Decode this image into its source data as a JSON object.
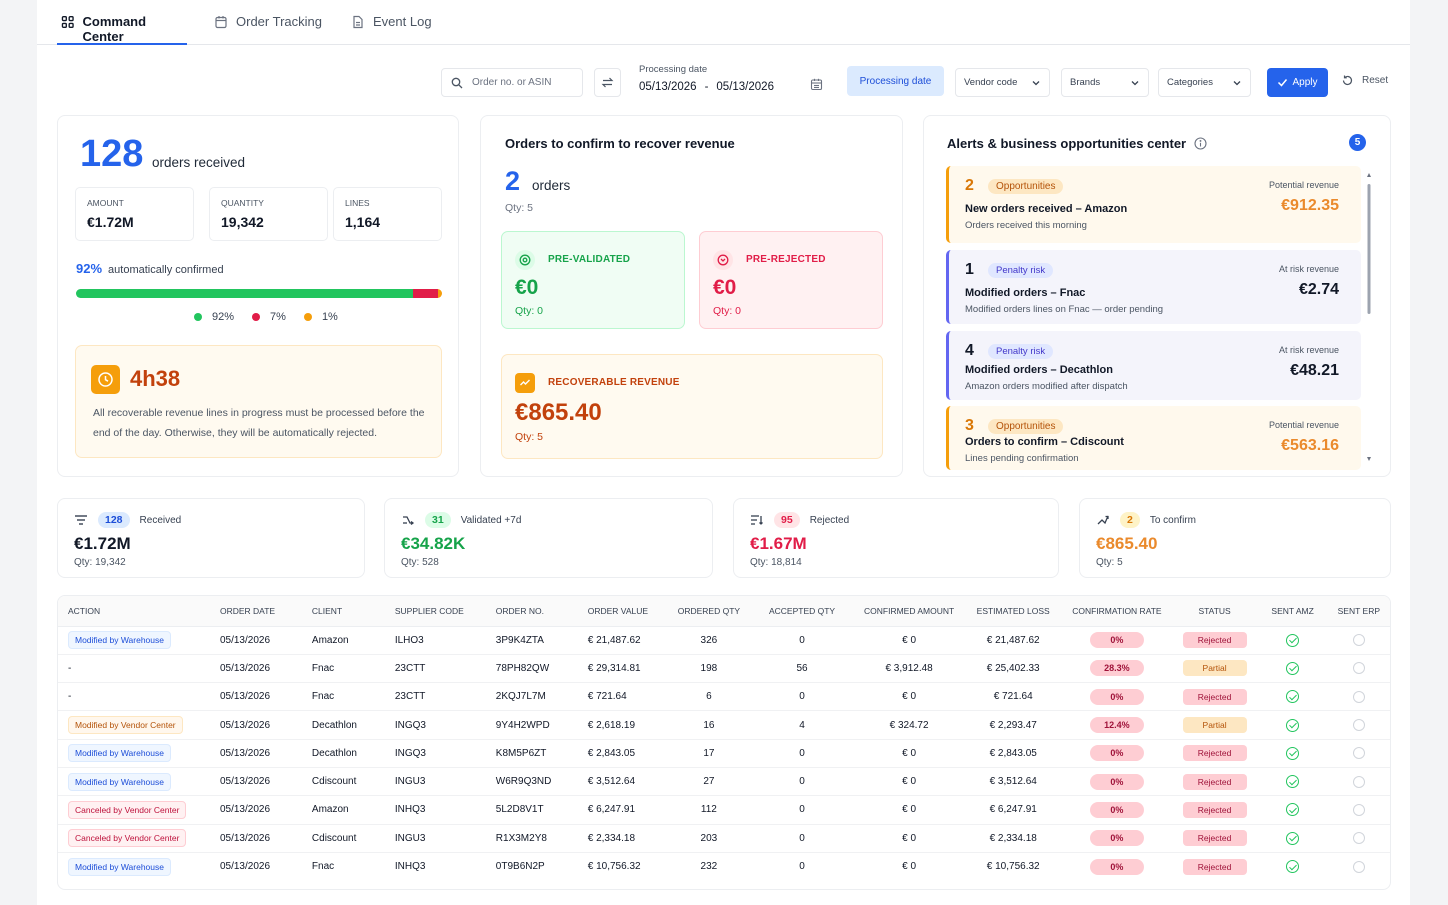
{
  "tabs": [
    {
      "label": "Command Center",
      "icon": "grid-icon"
    },
    {
      "label": "Order Tracking",
      "icon": "calendar-icon"
    },
    {
      "label": "Event Log",
      "icon": "document-icon"
    }
  ],
  "filters": {
    "search_placeholder": "Order no. or ASIN",
    "date_label": "Processing date",
    "date_from": "05/13/2026",
    "date_sep": "-",
    "date_to": "05/13/2026",
    "processing_btn": "Processing date",
    "vendor": "Vendor code",
    "brands": "Brands",
    "categories": "Categories",
    "apply": "Apply",
    "reset": "Reset"
  },
  "summary": {
    "count": "128",
    "count_label": "orders received",
    "stats": [
      {
        "label": "AMOUNT",
        "value": "€1.72M"
      },
      {
        "label": "QUANTITY",
        "value": "19,342"
      },
      {
        "label": "LINES",
        "value": "1,164"
      }
    ],
    "auto_pct": "92%",
    "auto_label": "automatically confirmed",
    "bar": [
      {
        "pct": 92,
        "color": "#22c55e"
      },
      {
        "pct": 7,
        "color": "#e11d48"
      },
      {
        "pct": 1,
        "color": "#f59e0b"
      }
    ],
    "legend": [
      "92%",
      "7%",
      "1%"
    ],
    "timer_value": "4h38",
    "timer_text": "All recoverable revenue lines in progress must be processed before the end of the day. Otherwise, they will be automatically rejected."
  },
  "confirm": {
    "title": "Orders to confirm to recover revenue",
    "count": "2",
    "count_label": "orders",
    "qty": "Qty: 5",
    "prevalidated": {
      "label": "PRE-VALIDATED",
      "value": "€0",
      "qty": "Qty: 0"
    },
    "prerejected": {
      "label": "PRE-REJECTED",
      "value": "€0",
      "qty": "Qty: 0"
    },
    "recoverable": {
      "label": "RECOVERABLE REVENUE",
      "value": "€865.40",
      "qty": "Qty: 5"
    }
  },
  "alerts": {
    "title": "Alerts & business opportunities center",
    "badge": "5",
    "items": [
      {
        "num": "2",
        "tag": "Opportunities",
        "title": "New orders received – Amazon",
        "sub": "Orders received this morning",
        "rlabel": "Potential revenue",
        "value": "€912.35",
        "kind": "opp"
      },
      {
        "num": "1",
        "tag": "Penalty risk",
        "title": "Modified orders – Fnac",
        "sub": "Modified orders lines on Fnac — order pending",
        "rlabel": "At risk revenue",
        "value": "€2.74",
        "kind": "risk"
      },
      {
        "num": "4",
        "tag": "Penalty risk",
        "title": "Modified orders – Decathlon",
        "sub": "Amazon orders modified after dispatch",
        "rlabel": "At risk revenue",
        "value": "€48.21",
        "kind": "risk"
      },
      {
        "num": "3",
        "tag": "Opportunities",
        "title": "Orders to confirm – Cdiscount",
        "sub": "Lines pending confirmation",
        "rlabel": "Potential revenue",
        "value": "€563.16",
        "kind": "opp"
      }
    ]
  },
  "kpis": [
    {
      "count": "128",
      "label": "Received",
      "value": "€1.72M",
      "qty": "Qty: 19,342"
    },
    {
      "count": "31",
      "label": "Validated +7d",
      "value": "€34.82K",
      "qty": "Qty: 528"
    },
    {
      "count": "95",
      "label": "Rejected",
      "value": "€1.67M",
      "qty": "Qty: 18,814"
    },
    {
      "count": "2",
      "label": "To confirm",
      "value": "€865.40",
      "qty": "Qty: 5"
    }
  ],
  "colors": {
    "accent": "#2563eb",
    "green": "#22c55e",
    "red": "#e11d48",
    "orange": "#f59e0b"
  },
  "table": {
    "headers": [
      "ACTION",
      "ORDER DATE",
      "CLIENT",
      "SUPPLIER CODE",
      "ORDER NO.",
      "ORDER VALUE",
      "ORDERED QTY",
      "ACCEPTED QTY",
      "CONFIRMED AMOUNT",
      "ESTIMATED LOSS",
      "CONFIRMATION RATE",
      "STATUS",
      "SENT AMZ",
      "SENT ERP"
    ],
    "rows": [
      {
        "action": "Modified by Warehouse",
        "atype": "blue",
        "date": "05/13/2026",
        "client": "Amazon",
        "supplier": "ILHO3",
        "order": "3P9K4ZTA",
        "value": "€ 21,487.62",
        "ordered": "326",
        "accepted": "0",
        "confirmed": "€ 0",
        "loss": "€ 21,487.62",
        "rate": "0%",
        "status": "Rejected"
      },
      {
        "action": "-",
        "atype": "none",
        "date": "05/13/2026",
        "client": "Fnac",
        "supplier": "23CTT",
        "order": "78PH82QW",
        "value": "€ 29,314.81",
        "ordered": "198",
        "accepted": "56",
        "confirmed": "€ 3,912.48",
        "loss": "€ 25,402.33",
        "rate": "28.3%",
        "status": "Partial"
      },
      {
        "action": "-",
        "atype": "none",
        "date": "05/13/2026",
        "client": "Fnac",
        "supplier": "23CTT",
        "order": "2KQJ7L7M",
        "value": "€ 721.64",
        "ordered": "6",
        "accepted": "0",
        "confirmed": "€ 0",
        "loss": "€ 721.64",
        "rate": "0%",
        "status": "Rejected"
      },
      {
        "action": "Modified by Vendor Center",
        "atype": "orange",
        "date": "05/13/2026",
        "client": "Decathlon",
        "supplier": "INGQ3",
        "order": "9Y4H2WPD",
        "value": "€ 2,618.19",
        "ordered": "16",
        "accepted": "4",
        "confirmed": "€ 324.72",
        "loss": "€ 2,293.47",
        "rate": "12.4%",
        "status": "Partial"
      },
      {
        "action": "Modified by Warehouse",
        "atype": "blue",
        "date": "05/13/2026",
        "client": "Decathlon",
        "supplier": "INGQ3",
        "order": "K8M5P6ZT",
        "value": "€ 2,843.05",
        "ordered": "17",
        "accepted": "0",
        "confirmed": "€ 0",
        "loss": "€ 2,843.05",
        "rate": "0%",
        "status": "Rejected"
      },
      {
        "action": "Modified by Warehouse",
        "atype": "blue",
        "date": "05/13/2026",
        "client": "Cdiscount",
        "supplier": "INGU3",
        "order": "W6R9Q3ND",
        "value": "€ 3,512.64",
        "ordered": "27",
        "accepted": "0",
        "confirmed": "€ 0",
        "loss": "€ 3,512.64",
        "rate": "0%",
        "status": "Rejected"
      },
      {
        "action": "Canceled by Vendor Center",
        "atype": "red",
        "date": "05/13/2026",
        "client": "Amazon",
        "supplier": "INHQ3",
        "order": "5L2D8V1T",
        "value": "€ 6,247.91",
        "ordered": "112",
        "accepted": "0",
        "confirmed": "€ 0",
        "loss": "€ 6,247.91",
        "rate": "0%",
        "status": "Rejected"
      },
      {
        "action": "Canceled by Vendor Center",
        "atype": "red",
        "date": "05/13/2026",
        "client": "Cdiscount",
        "supplier": "INGU3",
        "order": "R1X3M2Y8",
        "value": "€ 2,334.18",
        "ordered": "203",
        "accepted": "0",
        "confirmed": "€ 0",
        "loss": "€ 2,334.18",
        "rate": "0%",
        "status": "Rejected"
      },
      {
        "action": "Modified by Warehouse",
        "atype": "blue",
        "date": "05/13/2026",
        "client": "Fnac",
        "supplier": "INHQ3",
        "order": "0T9B6N2P",
        "value": "€ 10,756.32",
        "ordered": "232",
        "accepted": "0",
        "confirmed": "€ 0",
        "loss": "€ 10,756.32",
        "rate": "0%",
        "status": "Rejected"
      }
    ]
  }
}
